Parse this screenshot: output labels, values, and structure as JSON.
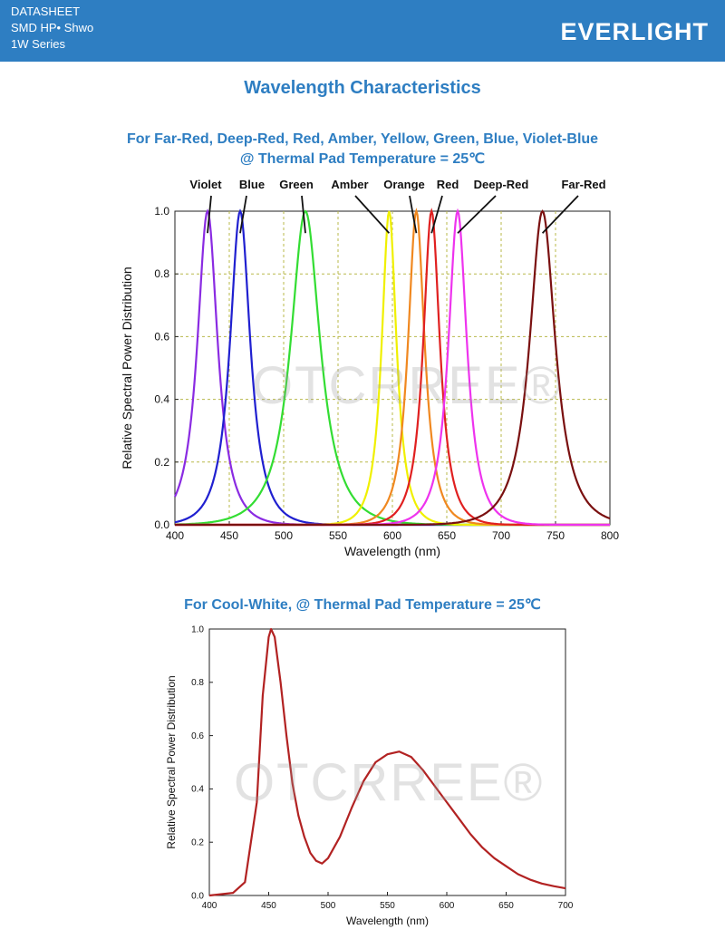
{
  "header": {
    "line1": "DATASHEET",
    "line2": "SMD HP• Shwo",
    "line3": "1W Series",
    "brand": "EVERLIGHT"
  },
  "page_title": "Wavelength Characteristics",
  "watermark": "OTCRREE®",
  "chart1_heading_line1": "For Far-Red, Deep-Red, Red, Amber, Yellow, Green, Blue, Violet-Blue",
  "chart1_heading_line2": "@ Thermal Pad Temperature = 25℃",
  "chart2_heading": "For Cool-White, @ Thermal Pad Temperature = 25℃",
  "chart_data": [
    {
      "type": "line",
      "xlabel": "Wavelength (nm)",
      "ylabel": "Relative Spectral Power Distribution",
      "xlim": [
        400,
        800
      ],
      "ylim": [
        0,
        1.0
      ],
      "xticks": [
        400,
        450,
        500,
        550,
        600,
        650,
        700,
        750,
        800
      ],
      "yticks": [
        0.0,
        0.2,
        0.4,
        0.6,
        0.8,
        1.0
      ],
      "ytick_labels": [
        "0.0",
        "0.2",
        "0.4",
        "0.6",
        "0.8",
        "1.0"
      ],
      "grid": true,
      "series": [
        {
          "name": "Violet",
          "label": "Violet",
          "peak": 430,
          "width": 11,
          "color": "#8a2be2"
        },
        {
          "name": "Blue",
          "label": "Blue",
          "peak": 460,
          "width": 11,
          "color": "#2020d0"
        },
        {
          "name": "Green",
          "label": "Green",
          "peak": 520,
          "width": 16,
          "color": "#33dd33"
        },
        {
          "name": "Amber/Yellow",
          "label": "Amber",
          "peak": 597,
          "width": 8,
          "color": "#f0f000"
        },
        {
          "name": "Orange",
          "label": "Orange",
          "peak": 622,
          "width": 9,
          "color": "#f08820"
        },
        {
          "name": "Red",
          "label": "Red",
          "peak": 636,
          "width": 9,
          "color": "#e02020"
        },
        {
          "name": "Deep-Red",
          "label": "Deep-Red",
          "peak": 660,
          "width": 10,
          "color": "#ee33ee"
        },
        {
          "name": "Far-Red",
          "label": "Far-Red",
          "peak": 738,
          "width": 14,
          "color": "#7a1010"
        }
      ]
    },
    {
      "type": "line",
      "xlabel": "Wavelength (nm)",
      "ylabel": "Relative Spectral Power Distribution",
      "xlim": [
        400,
        700
      ],
      "ylim": [
        0,
        1.0
      ],
      "xticks": [
        400,
        450,
        500,
        550,
        600,
        650,
        700
      ],
      "yticks": [
        0.0,
        0.2,
        0.4,
        0.6,
        0.8,
        1.0
      ],
      "ytick_labels": [
        "0.0",
        "0.2",
        "0.4",
        "0.6",
        "0.8",
        "1.0"
      ],
      "grid": false,
      "series": [
        {
          "name": "Cool-White",
          "color": "#b22222",
          "x": [
            400,
            420,
            430,
            440,
            445,
            450,
            452,
            455,
            460,
            465,
            470,
            475,
            480,
            485,
            490,
            495,
            500,
            510,
            520,
            530,
            540,
            550,
            560,
            570,
            580,
            590,
            600,
            610,
            620,
            630,
            640,
            650,
            660,
            670,
            680,
            690,
            700
          ],
          "y": [
            0.0,
            0.01,
            0.05,
            0.35,
            0.75,
            0.97,
            1.0,
            0.97,
            0.8,
            0.6,
            0.42,
            0.3,
            0.22,
            0.16,
            0.13,
            0.12,
            0.14,
            0.22,
            0.33,
            0.43,
            0.5,
            0.53,
            0.54,
            0.52,
            0.47,
            0.41,
            0.35,
            0.29,
            0.23,
            0.18,
            0.14,
            0.11,
            0.08,
            0.06,
            0.045,
            0.035,
            0.027
          ]
        }
      ]
    }
  ]
}
